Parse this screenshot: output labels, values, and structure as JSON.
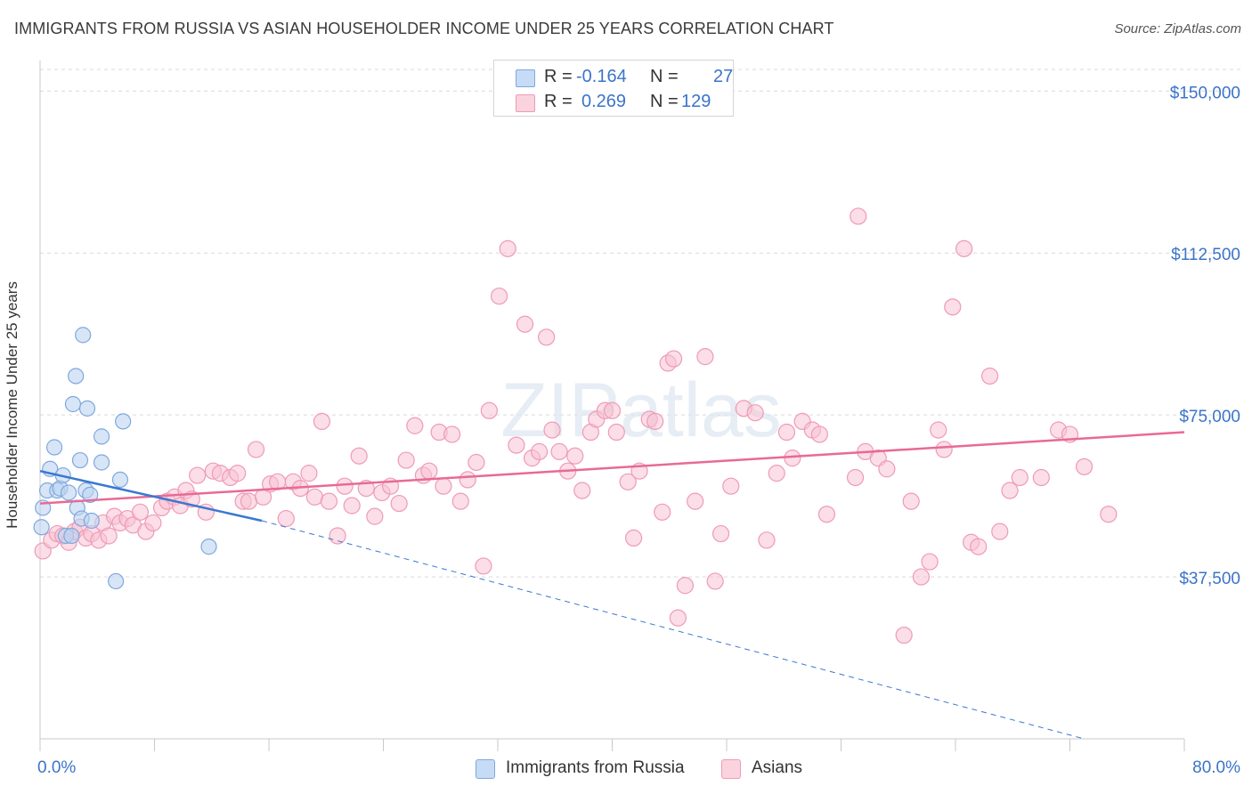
{
  "title": "IMMIGRANTS FROM RUSSIA VS ASIAN HOUSEHOLDER INCOME UNDER 25 YEARS CORRELATION CHART",
  "source": "Source: ZipAtlas.com",
  "watermark": "ZIPatlas",
  "legend": {
    "rows": [
      {
        "r_label": "R =",
        "r_value": "-0.164",
        "n_label": "N =",
        "n_value": "27",
        "color": "#a9c8f0"
      },
      {
        "r_label": "R =",
        "r_value": "0.269",
        "n_label": "N =",
        "n_value": "129",
        "color": "#f6b8cc"
      }
    ]
  },
  "bottom_legend": {
    "russia": "Immigrants from Russia",
    "asians": "Asians"
  },
  "chart_data": {
    "type": "scatter",
    "title": "IMMIGRANTS FROM RUSSIA VS ASIAN HOUSEHOLDER INCOME UNDER 25 YEARS CORRELATION CHART",
    "xlabel": "",
    "ylabel": "Householder Income Under 25 years",
    "xlim": [
      0,
      80
    ],
    "ylim": [
      0,
      155000
    ],
    "x_tick_labels": [
      "0.0%",
      "80.0%"
    ],
    "y_ticks": [
      37500,
      75000,
      112500,
      150000
    ],
    "y_tick_labels": [
      "$37,500",
      "$75,000",
      "$112,500",
      "$150,000"
    ],
    "colors": {
      "russia": "#6fa0dc",
      "asians": "#ef8fb0",
      "russia_line": "#3a78d0",
      "asians_line": "#e86a96",
      "axis_label": "#3b74c8"
    },
    "series": [
      {
        "name": "Immigrants from Russia",
        "trend": {
          "x": [
            0,
            15.5
          ],
          "y": [
            62000,
            50500
          ],
          "dash_to": [
            73,
            0
          ]
        },
        "points": [
          [
            0.1,
            49000
          ],
          [
            0.2,
            53500
          ],
          [
            0.5,
            57500
          ],
          [
            0.7,
            62500
          ],
          [
            1.0,
            67500
          ],
          [
            1.2,
            57500
          ],
          [
            1.4,
            58000
          ],
          [
            1.6,
            61000
          ],
          [
            1.8,
            47000
          ],
          [
            2.0,
            57000
          ],
          [
            2.2,
            47000
          ],
          [
            2.3,
            77500
          ],
          [
            2.5,
            84000
          ],
          [
            2.6,
            53500
          ],
          [
            2.8,
            64500
          ],
          [
            2.9,
            51000
          ],
          [
            3.0,
            93500
          ],
          [
            3.2,
            57500
          ],
          [
            3.3,
            76500
          ],
          [
            3.5,
            56500
          ],
          [
            3.6,
            50500
          ],
          [
            4.3,
            70000
          ],
          [
            4.3,
            64000
          ],
          [
            5.3,
            36500
          ],
          [
            5.6,
            60000
          ],
          [
            5.8,
            73500
          ],
          [
            11.8,
            44500
          ]
        ]
      },
      {
        "name": "Asians",
        "trend": {
          "x": [
            0,
            80
          ],
          "y": [
            54500,
            71000
          ]
        },
        "points": [
          [
            0.2,
            43500
          ],
          [
            0.8,
            46000
          ],
          [
            1.2,
            47500
          ],
          [
            1.6,
            47000
          ],
          [
            2.0,
            45500
          ],
          [
            2.4,
            48000
          ],
          [
            2.8,
            49000
          ],
          [
            3.2,
            46500
          ],
          [
            3.6,
            47500
          ],
          [
            4.1,
            46000
          ],
          [
            4.4,
            50000
          ],
          [
            4.8,
            47000
          ],
          [
            5.2,
            51500
          ],
          [
            5.6,
            50000
          ],
          [
            6.1,
            51000
          ],
          [
            6.5,
            49500
          ],
          [
            7.0,
            52500
          ],
          [
            7.4,
            48000
          ],
          [
            7.9,
            50000
          ],
          [
            8.5,
            53500
          ],
          [
            8.9,
            55000
          ],
          [
            9.4,
            56000
          ],
          [
            9.8,
            54000
          ],
          [
            10.2,
            57500
          ],
          [
            10.6,
            55500
          ],
          [
            11.0,
            61000
          ],
          [
            11.6,
            52500
          ],
          [
            12.1,
            62000
          ],
          [
            12.6,
            61500
          ],
          [
            13.3,
            60500
          ],
          [
            13.8,
            61500
          ],
          [
            14.2,
            55000
          ],
          [
            14.6,
            55000
          ],
          [
            15.1,
            67000
          ],
          [
            15.6,
            56000
          ],
          [
            16.1,
            59000
          ],
          [
            16.6,
            59500
          ],
          [
            17.2,
            51000
          ],
          [
            17.7,
            59500
          ],
          [
            18.2,
            58000
          ],
          [
            18.8,
            61500
          ],
          [
            19.2,
            56000
          ],
          [
            19.7,
            73500
          ],
          [
            20.2,
            55000
          ],
          [
            20.8,
            47000
          ],
          [
            21.3,
            58500
          ],
          [
            21.8,
            54000
          ],
          [
            22.3,
            65500
          ],
          [
            22.8,
            58000
          ],
          [
            23.4,
            51500
          ],
          [
            23.9,
            57000
          ],
          [
            24.5,
            58500
          ],
          [
            25.1,
            54500
          ],
          [
            25.6,
            64500
          ],
          [
            26.2,
            72500
          ],
          [
            26.8,
            61000
          ],
          [
            27.2,
            62000
          ],
          [
            27.9,
            71000
          ],
          [
            28.2,
            58500
          ],
          [
            28.8,
            70500
          ],
          [
            29.4,
            55000
          ],
          [
            29.9,
            60000
          ],
          [
            30.5,
            64000
          ],
          [
            31.0,
            40000
          ],
          [
            31.4,
            76000
          ],
          [
            32.1,
            102500
          ],
          [
            32.7,
            113500
          ],
          [
            33.3,
            68000
          ],
          [
            33.9,
            96000
          ],
          [
            34.4,
            65000
          ],
          [
            34.9,
            66500
          ],
          [
            35.4,
            93000
          ],
          [
            35.8,
            71500
          ],
          [
            36.3,
            66500
          ],
          [
            36.9,
            62000
          ],
          [
            37.4,
            65500
          ],
          [
            37.9,
            57500
          ],
          [
            38.5,
            71000
          ],
          [
            38.9,
            74000
          ],
          [
            39.5,
            76000
          ],
          [
            40.0,
            76000
          ],
          [
            40.3,
            71000
          ],
          [
            41.1,
            59500
          ],
          [
            41.5,
            46500
          ],
          [
            41.9,
            62000
          ],
          [
            42.6,
            74000
          ],
          [
            43.0,
            73500
          ],
          [
            43.5,
            52500
          ],
          [
            43.9,
            87000
          ],
          [
            44.3,
            88000
          ],
          [
            44.6,
            28000
          ],
          [
            45.1,
            35500
          ],
          [
            45.8,
            55000
          ],
          [
            46.5,
            88500
          ],
          [
            47.2,
            36500
          ],
          [
            47.6,
            47500
          ],
          [
            48.3,
            58500
          ],
          [
            49.2,
            76500
          ],
          [
            50.0,
            75500
          ],
          [
            50.8,
            46000
          ],
          [
            51.5,
            61500
          ],
          [
            52.2,
            71000
          ],
          [
            52.6,
            65000
          ],
          [
            53.3,
            73500
          ],
          [
            54.0,
            71500
          ],
          [
            54.5,
            70500
          ],
          [
            55.0,
            52000
          ],
          [
            57.0,
            60500
          ],
          [
            57.7,
            66500
          ],
          [
            58.6,
            65000
          ],
          [
            59.2,
            62500
          ],
          [
            60.4,
            24000
          ],
          [
            60.9,
            55000
          ],
          [
            61.6,
            37500
          ],
          [
            62.2,
            41000
          ],
          [
            62.8,
            71500
          ],
          [
            63.2,
            67000
          ],
          [
            63.8,
            100000
          ],
          [
            64.6,
            113500
          ],
          [
            65.1,
            45500
          ],
          [
            65.6,
            44500
          ],
          [
            66.4,
            84000
          ],
          [
            67.1,
            48000
          ],
          [
            67.8,
            57500
          ],
          [
            68.5,
            60500
          ],
          [
            70.0,
            60500
          ],
          [
            71.2,
            71500
          ],
          [
            72.0,
            70500
          ],
          [
            73.0,
            63000
          ],
          [
            74.7,
            52000
          ],
          [
            57.2,
            121000
          ]
        ]
      }
    ]
  }
}
